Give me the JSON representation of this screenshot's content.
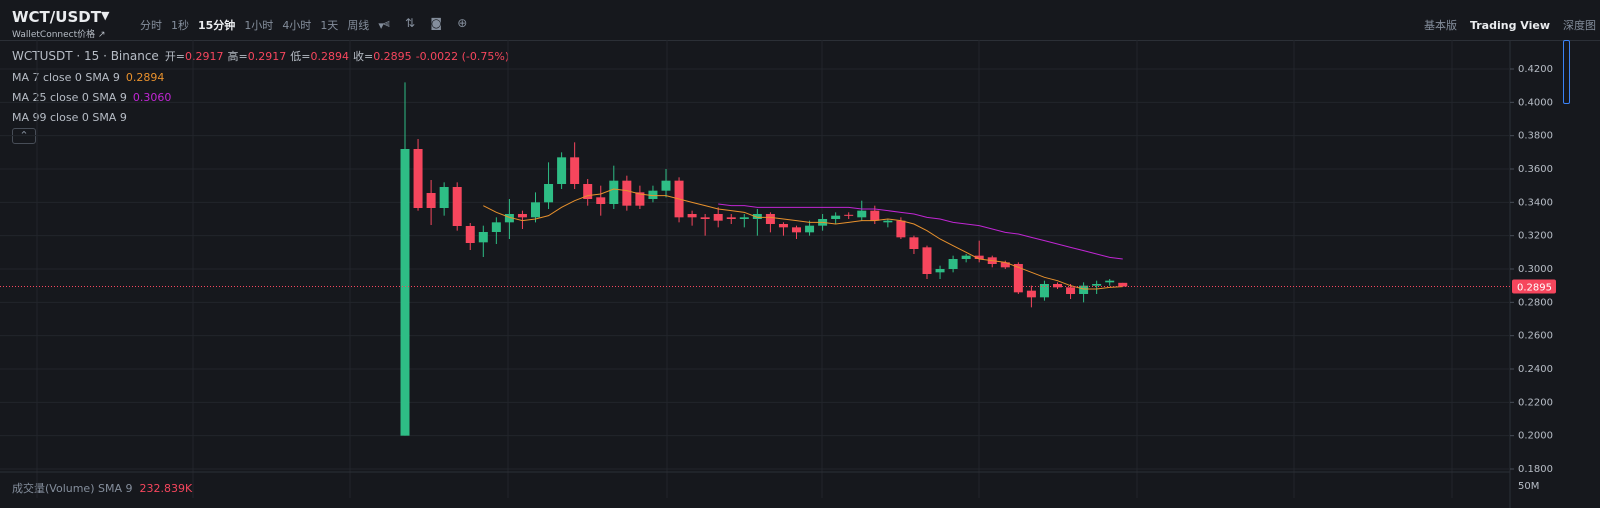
{
  "toolbar": {
    "symbol": "WCT/USDT",
    "subtitle": "WalletConnect价格 ↗",
    "intervals": [
      "分时",
      "1秒",
      "15分钟",
      "1小时",
      "4小时",
      "1天",
      "周线"
    ],
    "active_interval_index": 2,
    "views": [
      "基本版",
      "Trading View",
      "深度图"
    ],
    "active_view_index": 1
  },
  "chart_data": {
    "type": "candlestick",
    "title": "WCTUSDT · 15 · Binance",
    "ohlc_legend": [
      {
        "label": "开=",
        "value": "0.2917"
      },
      {
        "label": "高=",
        "value": "0.2917"
      },
      {
        "label": "低=",
        "value": "0.2894"
      },
      {
        "label": "收=",
        "value": "0.2895"
      }
    ],
    "change": "-0.0022 (-0.75%)",
    "up_color": "#2ebd85",
    "down_color": "#f6465d",
    "open": [
      0.2,
      0.372,
      0.3456,
      0.3366,
      0.3492,
      0.3258,
      0.316,
      0.3222,
      0.328,
      0.333,
      0.331,
      0.34,
      0.351,
      0.367,
      0.351,
      0.343,
      0.339,
      0.353,
      0.346,
      0.342,
      0.347,
      0.353,
      0.333,
      0.331,
      0.333,
      0.331,
      0.33,
      0.33,
      0.333,
      0.327,
      0.325,
      0.322,
      0.326,
      0.33,
      0.3325,
      0.331,
      0.335,
      0.328,
      0.329,
      0.319,
      0.313,
      0.298,
      0.3,
      0.306,
      0.308,
      0.307,
      0.304,
      0.303,
      0.287,
      0.283,
      0.291,
      0.289,
      0.285,
      0.29,
      0.292,
      0.2917
    ],
    "high": [
      0.412,
      0.378,
      0.3534,
      0.352,
      0.352,
      0.3276,
      0.326,
      0.331,
      0.342,
      0.335,
      0.346,
      0.364,
      0.37,
      0.376,
      0.354,
      0.35,
      0.362,
      0.356,
      0.35,
      0.35,
      0.36,
      0.355,
      0.335,
      0.333,
      0.337,
      0.333,
      0.333,
      0.336,
      0.334,
      0.328,
      0.326,
      0.329,
      0.333,
      0.334,
      0.334,
      0.341,
      0.338,
      0.33,
      0.331,
      0.32,
      0.314,
      0.302,
      0.308,
      0.309,
      0.317,
      0.308,
      0.305,
      0.304,
      0.29,
      0.293,
      0.292,
      0.291,
      0.292,
      0.293,
      0.294,
      0.2917
    ],
    "low": [
      0.2,
      0.335,
      0.3264,
      0.332,
      0.323,
      0.3114,
      0.3072,
      0.315,
      0.318,
      0.324,
      0.328,
      0.336,
      0.348,
      0.348,
      0.338,
      0.332,
      0.336,
      0.335,
      0.336,
      0.34,
      0.343,
      0.328,
      0.326,
      0.32,
      0.325,
      0.327,
      0.325,
      0.32,
      0.322,
      0.32,
      0.318,
      0.32,
      0.323,
      0.327,
      0.33,
      0.329,
      0.327,
      0.325,
      0.318,
      0.309,
      0.294,
      0.294,
      0.298,
      0.304,
      0.304,
      0.301,
      0.3,
      0.285,
      0.277,
      0.281,
      0.288,
      0.282,
      0.28,
      0.285,
      0.29,
      0.2894
    ],
    "close": [
      0.372,
      0.3366,
      0.3366,
      0.3492,
      0.3258,
      0.3156,
      0.3222,
      0.328,
      0.333,
      0.331,
      0.34,
      0.351,
      0.367,
      0.351,
      0.342,
      0.339,
      0.353,
      0.338,
      0.338,
      0.347,
      0.353,
      0.331,
      0.331,
      0.33,
      0.329,
      0.33,
      0.331,
      0.333,
      0.327,
      0.325,
      0.322,
      0.326,
      0.33,
      0.332,
      0.332,
      0.335,
      0.329,
      0.329,
      0.319,
      0.312,
      0.297,
      0.3,
      0.306,
      0.308,
      0.306,
      0.303,
      0.301,
      0.286,
      0.283,
      0.291,
      0.289,
      0.285,
      0.29,
      0.291,
      0.293,
      0.2895
    ],
    "overlays": [
      {
        "name": "MA 7 close 0 SMA 9",
        "color": "#e8912d",
        "last_value_label": "0.2894",
        "values": [
          null,
          null,
          null,
          null,
          null,
          null,
          0.338,
          0.334,
          0.331,
          0.329,
          0.33,
          0.332,
          0.337,
          0.341,
          0.344,
          0.345,
          0.348,
          0.347,
          0.345,
          0.344,
          0.344,
          0.342,
          0.34,
          0.338,
          0.336,
          0.335,
          0.334,
          0.331,
          0.331,
          0.33,
          0.329,
          0.328,
          0.328,
          0.327,
          0.328,
          0.329,
          0.329,
          0.33,
          0.329,
          0.327,
          0.323,
          0.318,
          0.314,
          0.31,
          0.306,
          0.305,
          0.304,
          0.301,
          0.298,
          0.295,
          0.293,
          0.29,
          0.288,
          0.288,
          0.289,
          0.2894
        ]
      },
      {
        "name": "MA 25 close 0 SMA 9",
        "color": "#c026d3",
        "last_value_label": "0.3060",
        "values": [
          null,
          null,
          null,
          null,
          null,
          null,
          null,
          null,
          null,
          null,
          null,
          null,
          null,
          null,
          null,
          null,
          null,
          null,
          null,
          null,
          null,
          null,
          null,
          null,
          0.339,
          0.338,
          0.338,
          0.337,
          0.337,
          0.337,
          0.337,
          0.337,
          0.337,
          0.337,
          0.337,
          0.336,
          0.336,
          0.335,
          0.334,
          0.333,
          0.331,
          0.33,
          0.328,
          0.327,
          0.326,
          0.324,
          0.322,
          0.321,
          0.319,
          0.317,
          0.315,
          0.313,
          0.311,
          0.309,
          0.307,
          0.306
        ]
      },
      {
        "name": "MA 99 close 0 SMA 9"
      }
    ],
    "ylim": [
      0.18,
      0.4374
    ],
    "yticks": [
      {
        "value": 0.18,
        "label": "0.1800"
      },
      {
        "value": 0.2,
        "label": "0.2000"
      },
      {
        "value": 0.22,
        "label": "0.2200"
      },
      {
        "value": 0.24,
        "label": "0.2400"
      },
      {
        "value": 0.26,
        "label": "0.2600"
      },
      {
        "value": 0.28,
        "label": "0.2800"
      },
      {
        "value": 0.3,
        "label": "0.3000"
      },
      {
        "value": 0.32,
        "label": "0.3200"
      },
      {
        "value": 0.34,
        "label": "0.3400"
      },
      {
        "value": 0.36,
        "label": "0.3600"
      },
      {
        "value": 0.38,
        "label": "0.3800"
      },
      {
        "value": 0.4,
        "label": "0.4000"
      },
      {
        "value": 0.42,
        "label": "0.4200"
      }
    ],
    "grid": true,
    "last_price": 0.2895,
    "volume": {
      "title": "成交量(Volume) SMA 9",
      "value_label": "232.839K",
      "axis_label": "50M"
    }
  }
}
